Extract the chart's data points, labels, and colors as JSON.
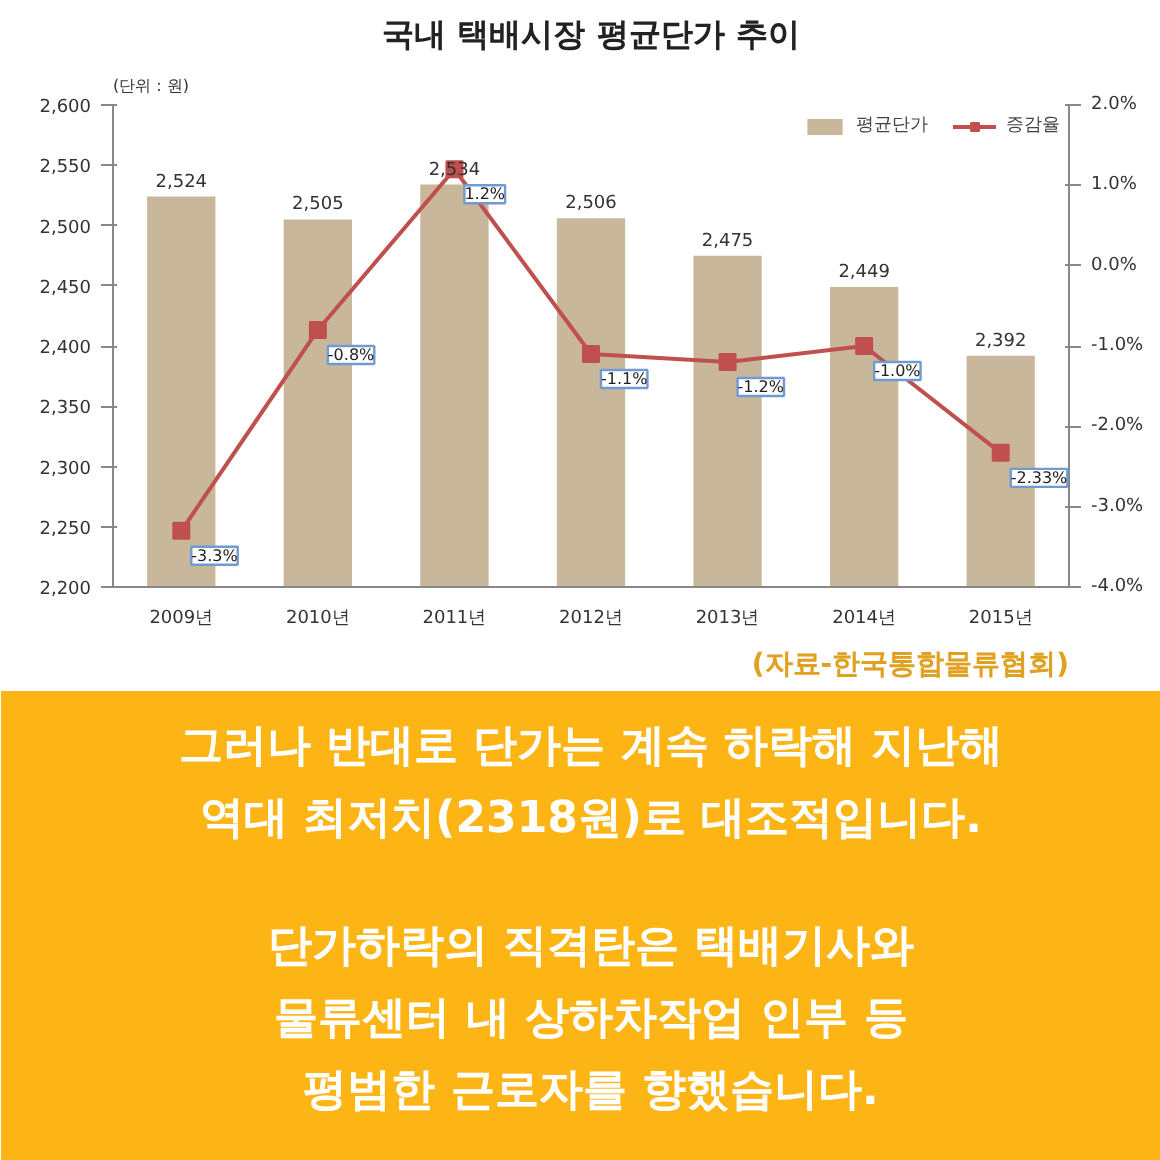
{
  "chart_data": {
    "type": "bar",
    "title": "국내 택배시장 평균단가 추이",
    "ylabel": "(단위 : 원)",
    "categories": [
      "2009년",
      "2010년",
      "2011년",
      "2012년",
      "2013년",
      "2014년",
      "2015년"
    ],
    "series": [
      {
        "name": "평균단가",
        "color": "#c9b79c",
        "values": [
          2524,
          2505,
          2534,
          2506,
          2475,
          2449,
          2392
        ],
        "value_labels": [
          "2,524",
          "2,505",
          "2,534",
          "2,506",
          "2,475",
          "2,449",
          "2,392"
        ]
      },
      {
        "name": "증감율",
        "type": "line",
        "axis": "y2",
        "color": "#c0504d",
        "marker": "square",
        "values": [
          -3.3,
          -0.8,
          1.2,
          -1.1,
          -1.2,
          -1.0,
          -2.33
        ],
        "value_labels": [
          "-3.3%",
          "-0.8%",
          "1.2%",
          "-1.1%",
          "-1.2%",
          "-1.0%",
          "-2.33%"
        ]
      }
    ],
    "ylim": [
      2200,
      2600
    ],
    "yticks": [
      {
        "value": 2200,
        "label": "2,200"
      },
      {
        "value": 2250,
        "label": "2,250"
      },
      {
        "value": 2300,
        "label": "2,300"
      },
      {
        "value": 2350,
        "label": "2,350"
      },
      {
        "value": 2400,
        "label": "2,400"
      },
      {
        "value": 2450,
        "label": "2,450"
      },
      {
        "value": 2500,
        "label": "2,500"
      },
      {
        "value": 2550,
        "label": "2,550"
      },
      {
        "value": 2600,
        "label": "2,600"
      }
    ],
    "y2lim": [
      -4,
      2
    ],
    "y2ticks": [
      {
        "value": -4,
        "label": "-4.0%"
      },
      {
        "value": -3,
        "label": "-3.0%"
      },
      {
        "value": -2,
        "label": "-2.0%"
      },
      {
        "value": -1,
        "label": "-1.0%"
      },
      {
        "value": 0,
        "label": "0.0%"
      },
      {
        "value": 1,
        "label": "1.0%"
      },
      {
        "value": 2,
        "label": "2.0%"
      }
    ],
    "grid": false,
    "legend": "top right",
    "annotations": [
      "(자료-한국통합물류협회)",
      "그러나 반대로 단가는 계속 하락해 지난해\n역대 최저치(2318원)로 대조적입니다.",
      "단가하락의 직격탄은 택배기사와\n물류센터 내 상하차작업 인부 등\n평범한 근로자를 향했습니다."
    ]
  }
}
